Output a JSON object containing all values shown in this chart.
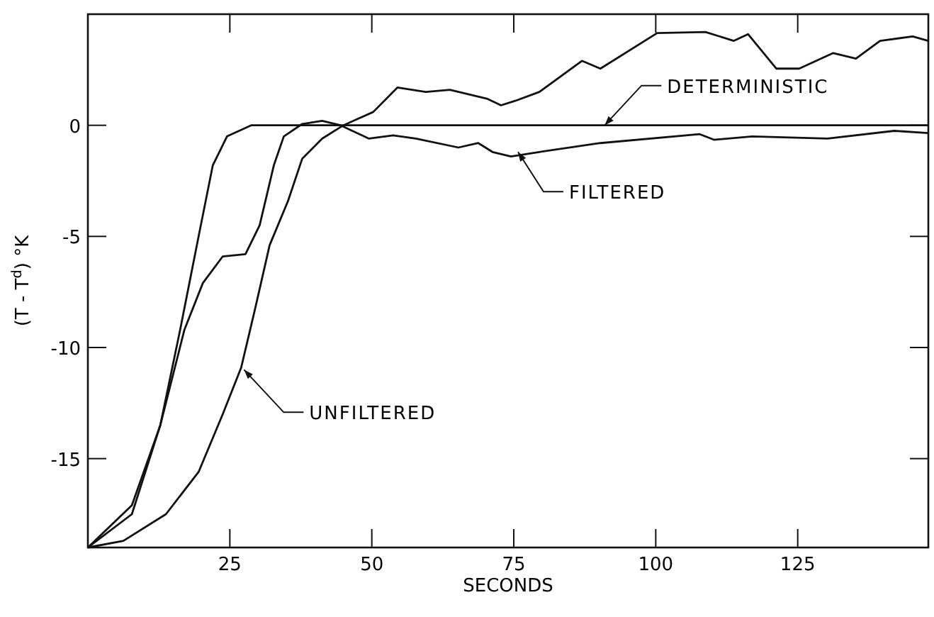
{
  "chart_data": {
    "type": "line",
    "xlabel": "SECONDS",
    "ylabel": "(T - T$^{d}$)  °K",
    "xlim": [
      0,
      148
    ],
    "ylim": [
      -19,
      5
    ],
    "xticks": [
      25,
      50,
      75,
      100,
      125
    ],
    "yticks": [
      0,
      -5,
      -10,
      -15
    ],
    "grid": false,
    "marker": "none",
    "line_style": "solid",
    "series": [
      {
        "color": "#111111",
        "x": [
          0,
          7.75,
          12.75,
          16.25,
          19.5,
          22,
          24.5,
          28.75,
          148
        ],
        "values": [
          -19,
          -17.1,
          -13.5,
          -9.2,
          -5,
          -1.8,
          -0.5,
          0,
          0
        ]
      },
      {
        "color": "#111111",
        "x": [
          0,
          7.75,
          12.75,
          17,
          20.25,
          23.75,
          27.75,
          30.25,
          32.75,
          34.5,
          37.75,
          41.25,
          44.5,
          49.5,
          53.75,
          57.75,
          65.25,
          68.75,
          71.25,
          74.5,
          79.5,
          90.25,
          107.75,
          110.25,
          117,
          130.25,
          142,
          148
        ],
        "values": [
          -19,
          -17.5,
          -13.5,
          -9.2,
          -7.1,
          -5.9,
          -5.8,
          -4.5,
          -1.8,
          -0.5,
          0.06,
          0.2,
          0,
          -0.6,
          -0.45,
          -0.6,
          -1,
          -0.8,
          -1.2,
          -1.4,
          -1.2,
          -0.8,
          -0.4,
          -0.65,
          -0.5,
          -0.6,
          -0.25,
          -0.35
        ]
      },
      {
        "color": "#111111",
        "x": [
          0,
          6.25,
          13.75,
          19.5,
          23.75,
          27,
          29.5,
          32,
          35.25,
          37.75,
          41.25,
          45,
          50.25,
          54.5,
          59.5,
          63.75,
          70.25,
          72.75,
          75.25,
          79.5,
          87,
          90.25,
          100.25,
          108.75,
          113.75,
          116.25,
          121.25,
          125.25,
          131.25,
          135.25,
          139.5,
          145.25,
          148
        ],
        "values": [
          -19,
          -18.7,
          -17.5,
          -15.6,
          -13,
          -10.9,
          -8.2,
          -5.4,
          -3.4,
          -1.5,
          -0.6,
          0,
          0.6,
          1.7,
          1.5,
          1.6,
          1.2,
          0.9,
          1.1,
          1.5,
          2.9,
          2.55,
          4.15,
          4.2,
          3.8,
          4.1,
          2.55,
          2.55,
          3.25,
          3,
          3.8,
          4,
          3.8
        ]
      }
    ],
    "annotations": [
      {
        "text": "DETERMINISTIC",
        "x": 91,
        "y": 0
      },
      {
        "text": "FILTERED",
        "x": 75.75,
        "y": -1.2
      },
      {
        "text": "UNFILTERED",
        "x": 27.5,
        "y": -11
      }
    ]
  }
}
